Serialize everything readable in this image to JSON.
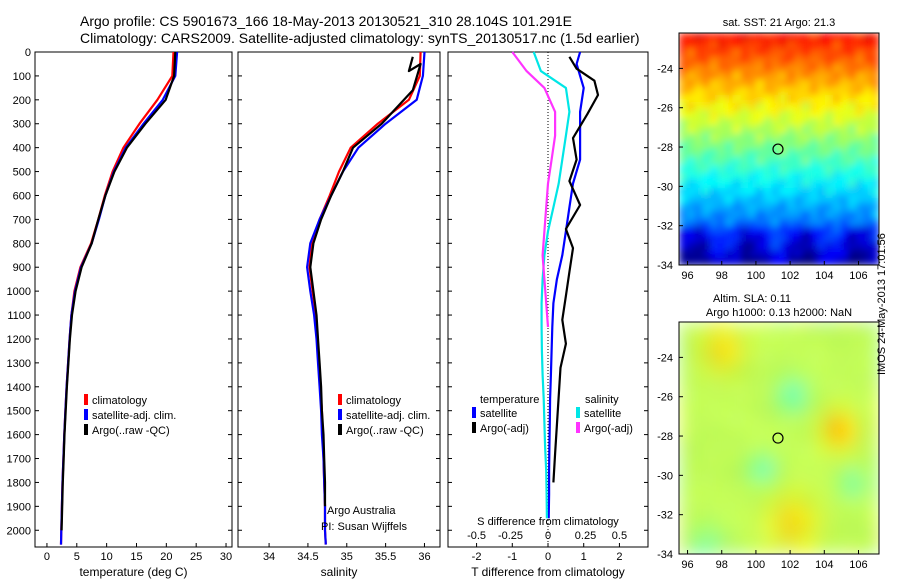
{
  "header": {
    "line1": "Argo profile: CS 5901673_166 18-May-2013 20130521_310 28.104S 101.291E",
    "line2": "Climatology: CARS2009. Satellite-adjusted climatology: synTS_20130517.nc (1.5d earlier)"
  },
  "stamp": "IMOS 24-May-2013 17:01:56",
  "depth_ticks": [
    0,
    100,
    200,
    300,
    400,
    500,
    600,
    700,
    800,
    900,
    1000,
    1100,
    1200,
    1300,
    1400,
    1500,
    1600,
    1700,
    1800,
    1900,
    2000
  ],
  "colors": {
    "climatology": "#ff0000",
    "satellite": "#0000ff",
    "argo": "#000000",
    "sal_satellite": "#00e6e6",
    "sal_argo": "#ff33ff"
  },
  "chart_data": [
    {
      "type": "line",
      "xlabel": "temperature (deg C)",
      "ylabel": "",
      "xlim": [
        -2,
        31
      ],
      "ylim": [
        2070,
        0
      ],
      "xticks": [
        0,
        5,
        10,
        15,
        20,
        25,
        30
      ],
      "legend": [
        "climatology",
        "satellite-adj. clim.",
        "Argo(..raw -QC)"
      ],
      "legend_placement": "lower-right",
      "series": [
        {
          "name": "climatology",
          "color": "#ff0000",
          "x": [
            21.2,
            21.0,
            18.5,
            15.5,
            12.8,
            11.0,
            9.7,
            8.6,
            7.4,
            5.6,
            4.6,
            4.1,
            3.8,
            3.55,
            3.3,
            3.1,
            2.9,
            2.75,
            2.6,
            2.5,
            2.4,
            2.35
          ],
          "y": [
            0,
            100,
            200,
            300,
            400,
            500,
            600,
            700,
            800,
            900,
            1000,
            1100,
            1200,
            1300,
            1400,
            1500,
            1600,
            1700,
            1800,
            1900,
            2000,
            2060
          ]
        },
        {
          "name": "satellite-adj. clim.",
          "color": "#0000ff",
          "x": [
            21.8,
            21.5,
            19.4,
            16.2,
            13.2,
            11.2,
            9.8,
            8.7,
            7.5,
            5.7,
            4.7,
            4.1,
            3.8,
            3.55,
            3.3,
            3.1,
            2.9,
            2.75,
            2.6,
            2.5,
            2.4,
            2.35
          ],
          "y": [
            0,
            100,
            200,
            300,
            400,
            500,
            600,
            700,
            800,
            900,
            1000,
            1100,
            1200,
            1300,
            1400,
            1500,
            1600,
            1700,
            1800,
            1900,
            2000,
            2060
          ]
        },
        {
          "name": "Argo(..raw -QC)",
          "color": "#000000",
          "x": [
            21.5,
            21.3,
            19.9,
            16.5,
            13.4,
            11.3,
            9.8,
            8.6,
            7.5,
            5.8,
            4.8,
            4.2,
            3.85,
            3.6,
            3.35,
            3.15,
            2.95,
            2.8,
            2.65,
            2.55,
            2.45
          ],
          "y": [
            0,
            100,
            200,
            300,
            400,
            500,
            600,
            700,
            800,
            900,
            1000,
            1100,
            1200,
            1300,
            1400,
            1500,
            1600,
            1700,
            1800,
            1900,
            2000
          ]
        }
      ]
    },
    {
      "type": "line",
      "xlabel": "salinity",
      "ylabel": "",
      "xlim": [
        33.6,
        36.2
      ],
      "ylim": [
        2070,
        0
      ],
      "xticks": [
        34,
        34.5,
        35,
        35.5,
        36
      ],
      "legend": [
        "climatology",
        "satellite-adj. clim.",
        "Argo(..raw -QC)"
      ],
      "legend_placement": "lower-right",
      "annotation": [
        "Argo Australia",
        "PI: Susan Wijffels"
      ],
      "series": [
        {
          "name": "climatology",
          "color": "#ff0000",
          "x": [
            35.95,
            35.94,
            35.8,
            35.4,
            35.05,
            34.9,
            34.78,
            34.65,
            34.55,
            34.52,
            34.56,
            34.6,
            34.62,
            34.64,
            34.66,
            34.68,
            34.69,
            34.7,
            34.71,
            34.72,
            34.72,
            34.73
          ],
          "y": [
            0,
            100,
            200,
            300,
            400,
            500,
            600,
            700,
            800,
            900,
            1000,
            1100,
            1200,
            1300,
            1400,
            1500,
            1600,
            1700,
            1800,
            1900,
            2000,
            2060
          ]
        },
        {
          "name": "satellite-adj. clim.",
          "color": "#0000ff",
          "x": [
            36.0,
            35.98,
            35.9,
            35.5,
            35.15,
            34.95,
            34.8,
            34.65,
            34.53,
            34.49,
            34.53,
            34.58,
            34.61,
            34.63,
            34.65,
            34.67,
            34.68,
            34.7,
            34.71,
            34.72,
            34.72,
            34.73
          ],
          "y": [
            0,
            100,
            200,
            300,
            400,
            500,
            600,
            700,
            800,
            900,
            1000,
            1100,
            1200,
            1300,
            1400,
            1500,
            1600,
            1700,
            1800,
            1900,
            2000,
            2060
          ]
        },
        {
          "name": "Argo(..raw -QC)",
          "color": "#000000",
          "x": [
            35.85,
            35.8,
            35.95,
            35.85,
            35.45,
            35.08,
            34.95,
            34.8,
            34.67,
            34.57,
            34.53,
            34.57,
            34.61,
            34.63,
            34.65,
            34.67,
            34.68,
            34.7,
            34.71,
            34.72,
            34.72
          ],
          "y": [
            20,
            80,
            50,
            160,
            300,
            400,
            500,
            600,
            700,
            800,
            900,
            1000,
            1100,
            1200,
            1300,
            1400,
            1500,
            1600,
            1700,
            1800,
            1900
          ]
        }
      ]
    },
    {
      "type": "line",
      "xlabel": "T difference from climatology",
      "top_label": "S difference from climatology",
      "ylabel": "",
      "xlim": [
        -2.8,
        2.8
      ],
      "ylim": [
        2070,
        0
      ],
      "xticks": [
        -2,
        -1,
        0,
        1,
        2
      ],
      "top_ticks": [
        "-0.5",
        "-0.25",
        "0",
        "0.25",
        "0.5"
      ],
      "legend_headers": [
        "temperature",
        "salinity"
      ],
      "legend": [
        "satellite",
        "Argo(-adj)",
        "satellite",
        "Argo(-adj)"
      ],
      "legend_placement": "lower-center",
      "series": [
        {
          "name": "satellite",
          "group": "temperature",
          "color": "#0000ff",
          "x": [
            0.9,
            0.8,
            1.0,
            0.9,
            0.9,
            0.9,
            0.7,
            0.6,
            0.5,
            0.4,
            0.25,
            0.15,
            0.12,
            0.1,
            0.08,
            0.06,
            0.05,
            0.04,
            0.03,
            0.03,
            0.02
          ],
          "y": [
            0,
            50,
            150,
            250,
            350,
            450,
            550,
            650,
            750,
            850,
            950,
            1050,
            1150,
            1250,
            1350,
            1450,
            1550,
            1650,
            1750,
            1850,
            1950
          ]
        },
        {
          "name": "Argo(-adj)",
          "group": "temperature",
          "color": "#000000",
          "x": [
            0.6,
            0.8,
            1.3,
            1.4,
            1.1,
            0.7,
            0.8,
            0.6,
            0.9,
            0.5,
            0.7,
            0.6,
            0.5,
            0.4,
            0.5,
            0.35,
            0.3,
            0.25,
            0.2,
            0.15
          ],
          "y": [
            20,
            70,
            120,
            180,
            260,
            360,
            450,
            540,
            640,
            740,
            820,
            920,
            1020,
            1120,
            1220,
            1320,
            1440,
            1560,
            1680,
            1800
          ]
        },
        {
          "name": "satellite",
          "group": "salinity",
          "color": "#00e6e6",
          "x": [
            -0.4,
            -0.2,
            0.5,
            0.6,
            0.5,
            0.4,
            0.3,
            0.15,
            0.0,
            -0.1,
            -0.15,
            -0.18,
            -0.18,
            -0.17,
            -0.15,
            -0.12,
            -0.1,
            -0.08,
            -0.05,
            -0.04,
            -0.03
          ],
          "y": [
            0,
            80,
            150,
            250,
            350,
            450,
            550,
            650,
            750,
            850,
            950,
            1050,
            1150,
            1250,
            1350,
            1450,
            1550,
            1650,
            1750,
            1850,
            1950
          ]
        },
        {
          "name": "Argo(-adj)",
          "group": "salinity",
          "color": "#ff33ff",
          "x": [
            -1.0,
            -0.6,
            -0.1,
            0.2,
            0.2,
            0.1,
            0.0,
            -0.05,
            -0.1,
            -0.15,
            -0.1,
            -0.05,
            0.0
          ],
          "y": [
            0,
            80,
            150,
            250,
            350,
            450,
            550,
            650,
            750,
            850,
            950,
            1050,
            1150
          ]
        }
      ]
    },
    {
      "type": "heatmap",
      "title": "sat. SST: 21  Argo: 21.3",
      "xlim": [
        95.5,
        107.2
      ],
      "ylim": [
        -34,
        -22.2
      ],
      "xticks": [
        96,
        98,
        100,
        102,
        104,
        106
      ],
      "yticks": [
        -24,
        -26,
        -28,
        -30,
        -32,
        -34
      ],
      "marker": {
        "lon": 101.291,
        "lat": -28.104
      }
    },
    {
      "type": "heatmap",
      "title": [
        "Altim. SLA: 0.11",
        "Argo h1000: 0.13  h2000: NaN"
      ],
      "xlim": [
        95.5,
        107.2
      ],
      "ylim": [
        -34,
        -22.2
      ],
      "xticks": [
        96,
        98,
        100,
        102,
        104,
        106
      ],
      "yticks": [
        -24,
        -26,
        -28,
        -30,
        -32,
        -34
      ],
      "marker": {
        "lon": 101.291,
        "lat": -28.104
      }
    }
  ]
}
